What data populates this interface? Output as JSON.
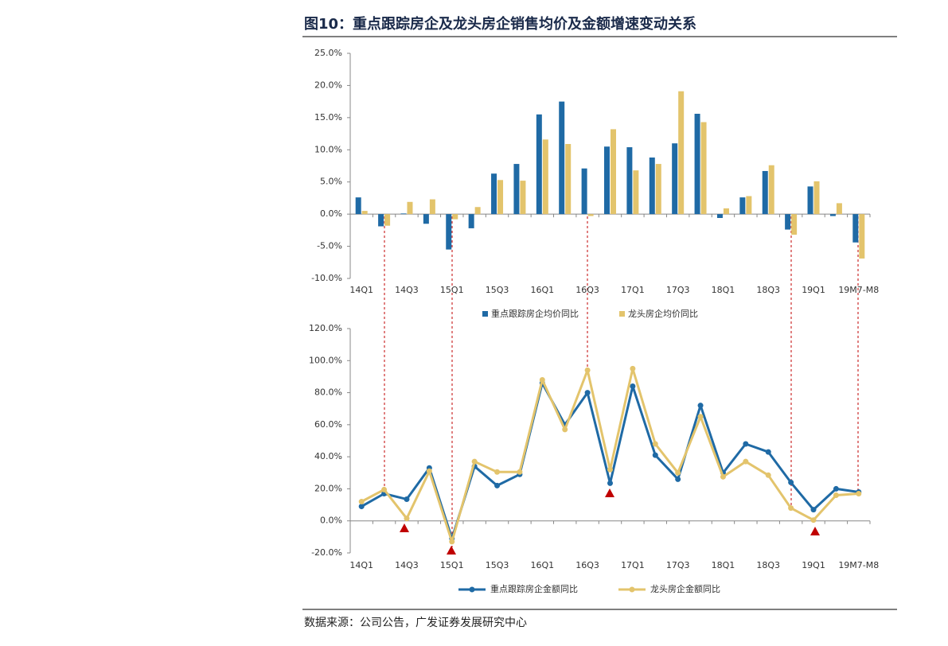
{
  "title": "图10：重点跟踪房企及龙头房企销售均价及金额增速变动关系",
  "source": "数据来源：公司公告，广发证券发展研究中心",
  "chart_data": [
    {
      "type": "bar",
      "categories": [
        "14Q1",
        null,
        "14Q3",
        null,
        "15Q1",
        null,
        "15Q3",
        null,
        "16Q1",
        null,
        "16Q3",
        null,
        "17Q1",
        null,
        "17Q3",
        null,
        "18Q1",
        null,
        "18Q3",
        null,
        "19Q1",
        null,
        "19M7-M8"
      ],
      "series": [
        {
          "name": "重点跟踪房企均价同比",
          "color": "#1f6aa5",
          "values": [
            2.6,
            -1.9,
            0.1,
            -1.5,
            -5.5,
            -2.2,
            6.3,
            7.8,
            15.5,
            17.5,
            7.1,
            10.5,
            10.4,
            8.8,
            11.0,
            15.6,
            -0.6,
            2.6,
            6.7,
            -2.4,
            4.3,
            -0.3,
            -4.4
          ]
        },
        {
          "name": "龙头房企均价同比",
          "color": "#e3c46c",
          "values": [
            0.5,
            -1.8,
            1.9,
            2.3,
            -0.8,
            1.1,
            5.3,
            5.2,
            11.6,
            10.9,
            -0.3,
            13.2,
            6.8,
            7.8,
            19.1,
            14.3,
            0.9,
            2.8,
            7.6,
            -3.2,
            5.1,
            1.7,
            -6.9
          ]
        }
      ],
      "ylim": [
        -10,
        25
      ],
      "yticks": [
        {
          "value": -10,
          "label": "-10.0%"
        },
        {
          "value": -5,
          "label": "-5.0%"
        },
        {
          "value": 0,
          "label": "0.0%"
        },
        {
          "value": 5,
          "label": "5.0%"
        },
        {
          "value": 10,
          "label": "10.0%"
        },
        {
          "value": 15,
          "label": "15.0%"
        },
        {
          "value": 20,
          "label": "20.0%"
        },
        {
          "value": 25,
          "label": "25.0%"
        }
      ]
    },
    {
      "type": "line",
      "categories": [
        "14Q1",
        null,
        "14Q3",
        null,
        "15Q1",
        null,
        "15Q3",
        null,
        "16Q1",
        null,
        "16Q3",
        null,
        "17Q1",
        null,
        "17Q3",
        null,
        "18Q1",
        null,
        "18Q3",
        null,
        "19Q1",
        null,
        "19M7-M8"
      ],
      "series": [
        {
          "name": "重点跟踪房企金额同比",
          "color": "#1f6aa5",
          "values": [
            9,
            17,
            13.5,
            33,
            -11,
            34,
            22,
            29,
            86,
            60,
            80,
            23.5,
            84,
            41,
            26,
            72,
            30,
            48,
            43,
            24,
            7,
            20,
            18
          ]
        },
        {
          "name": "龙头房企金额同比",
          "color": "#e3c46c",
          "values": [
            12,
            19.5,
            1.5,
            31,
            -13,
            37,
            30.5,
            30.5,
            88,
            57,
            94,
            32,
            95,
            48,
            30,
            65,
            27.5,
            37,
            28.5,
            8,
            0.5,
            16,
            17
          ]
        }
      ],
      "ylim": [
        -20,
        120
      ],
      "yticks": [
        {
          "value": -20,
          "label": "-20.0%"
        },
        {
          "value": 0,
          "label": "0.0%"
        },
        {
          "value": 20,
          "label": "20.0%"
        },
        {
          "value": 40,
          "label": "40.0%"
        },
        {
          "value": 60,
          "label": "60.0%"
        },
        {
          "value": 80,
          "label": "80.0%"
        },
        {
          "value": 100,
          "label": "100.0%"
        },
        {
          "value": 120,
          "label": "120.0%"
        }
      ]
    }
  ]
}
